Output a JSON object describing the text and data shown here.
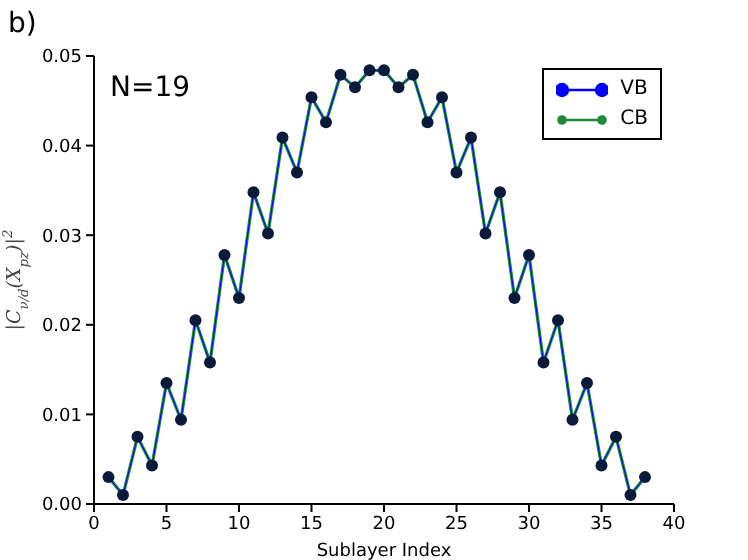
{
  "chart_data": {
    "type": "line",
    "xlabel": "Sublayer Index",
    "ylabel": "|C$_{ν/d}$(X$_{pz}$)|$^{2}$",
    "annotations": [
      "b)",
      "N=19"
    ],
    "x": [
      1,
      2,
      3,
      4,
      5,
      6,
      7,
      8,
      9,
      10,
      11,
      12,
      13,
      14,
      15,
      16,
      17,
      18,
      19,
      20,
      21,
      22,
      23,
      24,
      25,
      26,
      27,
      28,
      29,
      30,
      31,
      32,
      33,
      34,
      35,
      36,
      37,
      38
    ],
    "series": [
      {
        "name": "VB",
        "color": "#0000ff",
        "marker": "circle",
        "values": [
          0.003,
          0.001,
          0.0075,
          0.0043,
          0.0135,
          0.0094,
          0.0205,
          0.0158,
          0.0278,
          0.023,
          0.0348,
          0.0302,
          0.0409,
          0.037,
          0.0454,
          0.0426,
          0.0479,
          0.0465,
          0.0484,
          0.0484,
          0.0465,
          0.0479,
          0.0426,
          0.0454,
          0.037,
          0.0409,
          0.0302,
          0.0348,
          0.023,
          0.0278,
          0.0158,
          0.0205,
          0.0094,
          0.0135,
          0.0043,
          0.0075,
          0.001,
          0.003
        ]
      },
      {
        "name": "CB",
        "color": "#1f8a3c",
        "marker": "circle",
        "values": [
          0.003,
          0.001,
          0.0075,
          0.0043,
          0.0135,
          0.0094,
          0.0205,
          0.0158,
          0.0278,
          0.023,
          0.0348,
          0.0302,
          0.0409,
          0.037,
          0.0454,
          0.0426,
          0.0479,
          0.0465,
          0.0484,
          0.0484,
          0.0465,
          0.0479,
          0.0426,
          0.0454,
          0.037,
          0.0409,
          0.0302,
          0.0348,
          0.023,
          0.0278,
          0.0158,
          0.0205,
          0.0094,
          0.0135,
          0.0043,
          0.0075,
          0.001,
          0.003
        ]
      }
    ],
    "xlim": [
      0,
      40
    ],
    "xticks": [
      0,
      5,
      10,
      15,
      20,
      25,
      30,
      35,
      40
    ],
    "ylim": [
      0,
      0.05
    ],
    "yticks": [
      {
        "value": 0,
        "label": "0.00"
      },
      {
        "value": 0.01,
        "label": "0.01"
      },
      {
        "value": 0.02,
        "label": "0.02"
      },
      {
        "value": 0.03,
        "label": "0.03"
      },
      {
        "value": 0.04,
        "label": "0.04"
      },
      {
        "value": 0.05,
        "label": "0.05"
      }
    ],
    "grid": false,
    "legend": "top right"
  }
}
